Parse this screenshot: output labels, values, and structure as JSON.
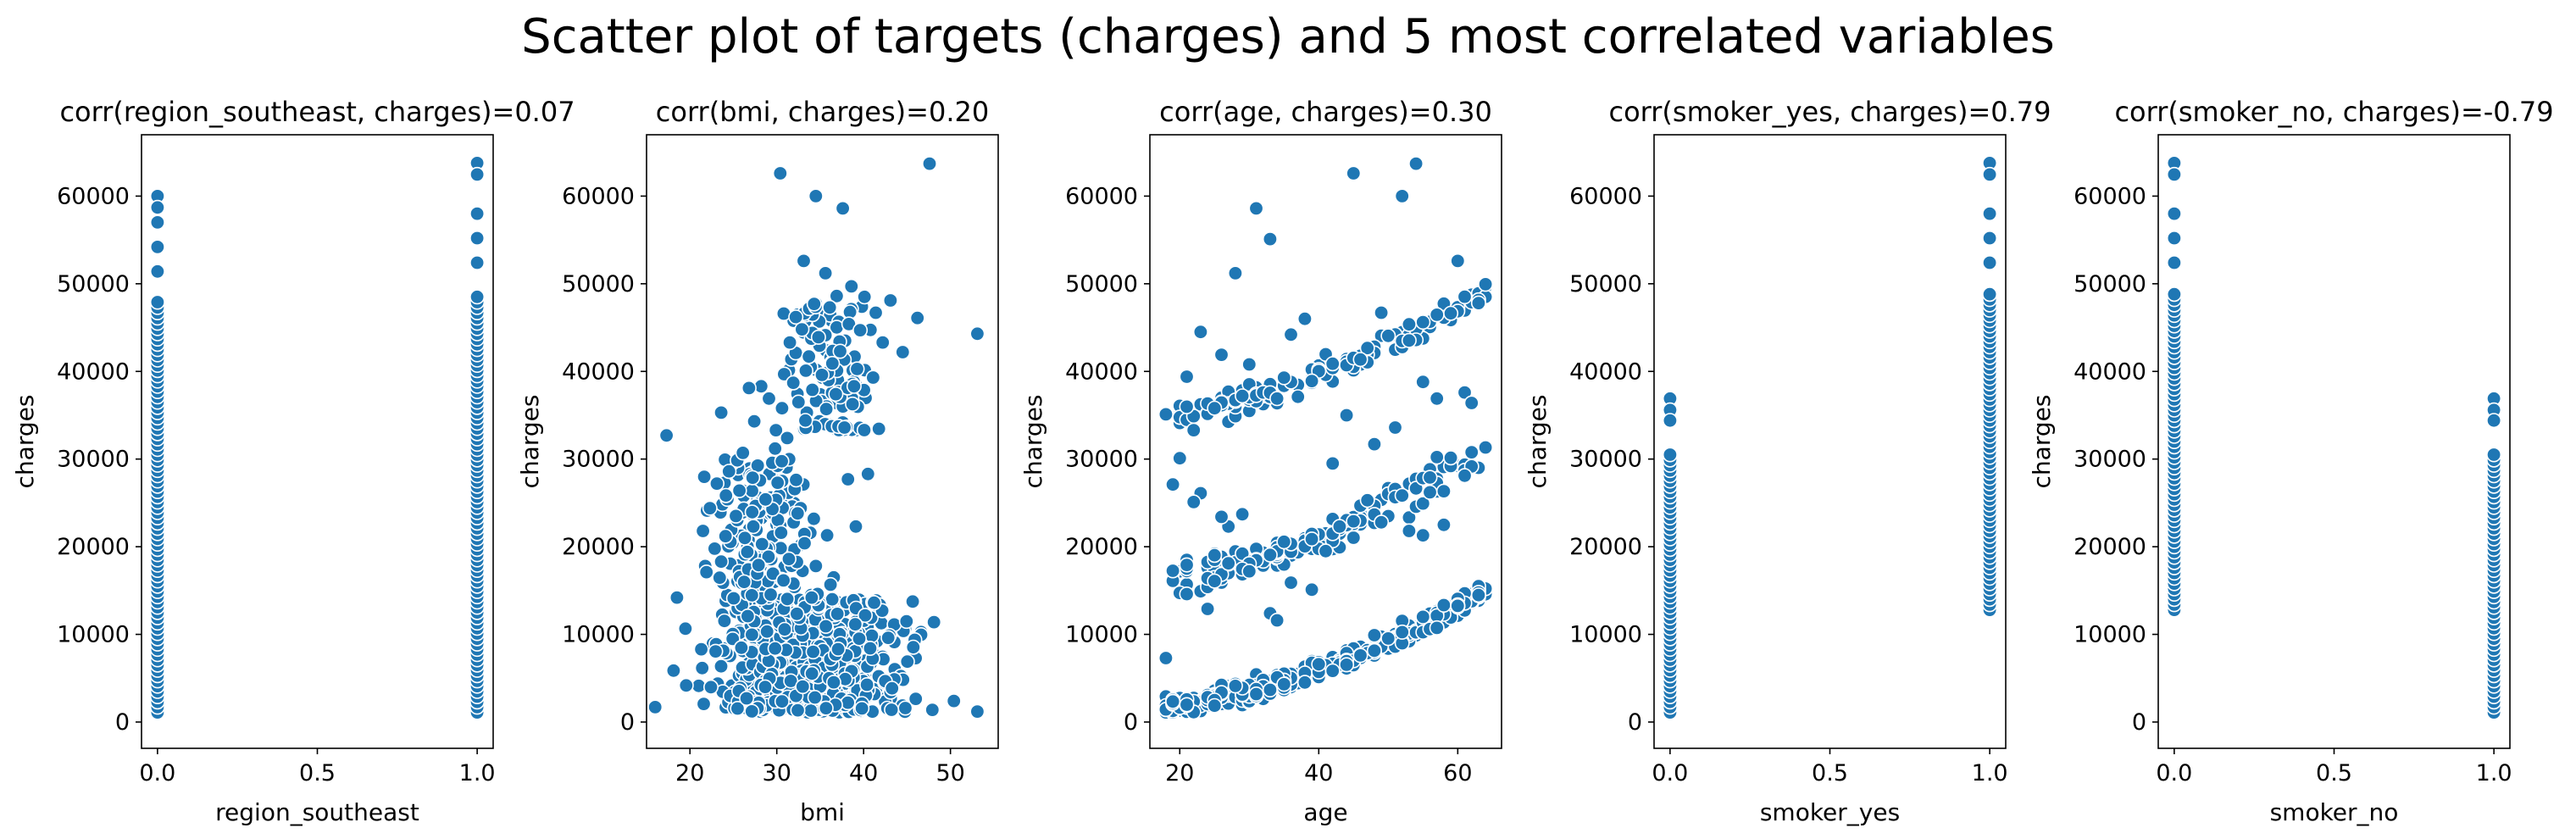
{
  "suptitle": "Scatter plot of targets (charges) and 5 most correlated variables",
  "style": {
    "point_color": "#1f77b4",
    "point_edge": "#ffffff",
    "axis_color": "#000000"
  },
  "chart_data": [
    {
      "type": "scatter",
      "title": "corr(region_southeast, charges)=0.07",
      "xlabel": "region_southeast",
      "ylabel": "charges",
      "xlim": [
        -0.05,
        1.05
      ],
      "ylim": [
        -3000,
        67000
      ],
      "xticks": [
        "0.0",
        "0.5",
        "1.0"
      ],
      "yticks": [
        "0",
        "10000",
        "20000",
        "30000",
        "40000",
        "50000",
        "60000"
      ],
      "clusters": [
        {
          "x": 0,
          "y_min": 1100,
          "y_max": 60000,
          "dense_max": 48000,
          "n": 55
        },
        {
          "x": 1,
          "y_min": 1100,
          "y_max": 63770,
          "dense_max": 49000,
          "n": 50
        }
      ]
    },
    {
      "type": "scatter",
      "title": "corr(bmi, charges)=0.20",
      "xlabel": "bmi",
      "ylabel": "charges",
      "xlim": [
        15,
        55.5
      ],
      "ylim": [
        -3000,
        67000
      ],
      "xticks": [
        "20",
        "30",
        "40",
        "50"
      ],
      "yticks": [
        "0",
        "10000",
        "20000",
        "30000",
        "40000",
        "50000",
        "60000"
      ],
      "points": [
        [
          16,
          1700
        ],
        [
          17.3,
          32700
        ],
        [
          18.5,
          14200
        ],
        [
          21.5,
          21800
        ],
        [
          30.4,
          62600
        ],
        [
          34.5,
          60000
        ],
        [
          37.6,
          58600
        ],
        [
          47.6,
          63700
        ],
        [
          53.1,
          44300
        ],
        [
          53.1,
          1200
        ],
        [
          50.4,
          2400
        ],
        [
          48.1,
          11400
        ],
        [
          46.2,
          46100
        ],
        [
          44.5,
          42200
        ],
        [
          43.1,
          48100
        ],
        [
          41.4,
          46700
        ],
        [
          40.1,
          48500
        ],
        [
          42.2,
          43300
        ],
        [
          36.9,
          48600
        ],
        [
          38.6,
          49700
        ],
        [
          35.6,
          51200
        ],
        [
          33.1,
          52600
        ],
        [
          30.8,
          46600
        ],
        [
          32.2,
          46200
        ],
        [
          34.3,
          47700
        ],
        [
          36.1,
          47300
        ],
        [
          38.3,
          45400
        ],
        [
          39.6,
          44700
        ],
        [
          32.9,
          44800
        ],
        [
          31.5,
          43300
        ],
        [
          34.8,
          43900
        ],
        [
          37.3,
          42300
        ],
        [
          33.7,
          41700
        ],
        [
          36.4,
          40900
        ],
        [
          35.2,
          39600
        ],
        [
          31.9,
          38700
        ],
        [
          34.1,
          37900
        ],
        [
          36.8,
          37400
        ],
        [
          38.9,
          38300
        ],
        [
          32.5,
          36500
        ],
        [
          35.7,
          35700
        ],
        [
          33.3,
          34400
        ],
        [
          30.6,
          35800
        ],
        [
          29.1,
          36900
        ],
        [
          28.2,
          38300
        ],
        [
          27.4,
          34300
        ],
        [
          29.9,
          33300
        ],
        [
          31.2,
          32400
        ],
        [
          37.8,
          33600
        ],
        [
          38.2,
          27700
        ],
        [
          40.5,
          28300
        ],
        [
          41.1,
          39300
        ],
        [
          39.1,
          22300
        ],
        [
          26.1,
          30700
        ],
        [
          24.5,
          28600
        ],
        [
          23.1,
          27200
        ],
        [
          22.3,
          24400
        ],
        [
          25.3,
          23500
        ],
        [
          27.3,
          22300
        ],
        [
          24.1,
          21200
        ],
        [
          26.6,
          19400
        ],
        [
          23.6,
          18300
        ],
        [
          21.9,
          17100
        ],
        [
          28.3,
          20300
        ],
        [
          29.5,
          24300
        ],
        [
          30.1,
          27300
        ],
        [
          28.7,
          25400
        ],
        [
          25.7,
          26400
        ],
        [
          27.9,
          17900
        ],
        [
          31.4,
          18600
        ],
        [
          30.5,
          21600
        ],
        [
          33.2,
          20400
        ],
        [
          35.8,
          21300
        ],
        [
          26.8,
          38100
        ],
        [
          23.6,
          35300
        ],
        [
          29.8,
          31200
        ],
        [
          32.4,
          23800
        ],
        [
          34.5,
          17800
        ]
      ],
      "dense_clusters": [
        {
          "x_range": [
            17,
            50
          ],
          "y_range": [
            1100,
            14000
          ],
          "n": 700
        },
        {
          "x_range": [
            20,
            37
          ],
          "y_range": [
            14000,
            30000
          ],
          "n": 150
        },
        {
          "x_range": [
            29,
            44
          ],
          "y_range": [
            33000,
            48000
          ],
          "n": 90
        }
      ]
    },
    {
      "type": "scatter",
      "title": "corr(age, charges)=0.30",
      "xlabel": "age",
      "ylabel": "charges",
      "xlim": [
        15.7,
        66.3
      ],
      "ylim": [
        -3000,
        67000
      ],
      "xticks": [
        "20",
        "40",
        "60"
      ],
      "yticks": [
        "0",
        "10000",
        "20000",
        "30000",
        "40000",
        "50000",
        "60000"
      ],
      "points": [
        [
          18,
          7300
        ],
        [
          31,
          58600
        ],
        [
          33,
          55100
        ],
        [
          28,
          51200
        ],
        [
          45,
          62600
        ],
        [
          52,
          60000
        ],
        [
          54,
          63700
        ],
        [
          60,
          52600
        ],
        [
          36,
          44200
        ],
        [
          38,
          46000
        ],
        [
          23,
          44500
        ],
        [
          26,
          41900
        ],
        [
          21,
          39400
        ],
        [
          18,
          35100
        ],
        [
          25,
          35800
        ],
        [
          29,
          37200
        ],
        [
          34,
          36900
        ],
        [
          30,
          40800
        ],
        [
          42,
          29500
        ],
        [
          48,
          31700
        ],
        [
          51,
          33600
        ],
        [
          57,
          36900
        ],
        [
          61,
          37600
        ],
        [
          62,
          36400
        ],
        [
          43,
          22300
        ],
        [
          41,
          19500
        ],
        [
          36,
          15900
        ],
        [
          39,
          15100
        ],
        [
          33,
          12400
        ],
        [
          34,
          11600
        ],
        [
          24,
          12900
        ],
        [
          21,
          14600
        ],
        [
          29,
          23700
        ],
        [
          27,
          22300
        ],
        [
          26,
          23400
        ],
        [
          23,
          26100
        ],
        [
          22,
          25100
        ],
        [
          19,
          27100
        ],
        [
          20,
          30100
        ],
        [
          22,
          33300
        ],
        [
          53,
          21800
        ],
        [
          47,
          25300
        ],
        [
          55,
          21300
        ],
        [
          58,
          22500
        ],
        [
          44,
          35000
        ],
        [
          55,
          38800
        ],
        [
          49,
          46700
        ],
        [
          63,
          47800
        ]
      ],
      "bands": [
        {
          "x_range": [
            18,
            64
          ],
          "y_start": 1100,
          "y_end": 14500,
          "spread": 2200,
          "n": 420
        },
        {
          "x_range": [
            18,
            64
          ],
          "y_start": 15000,
          "y_end": 30000,
          "spread": 4200,
          "n": 150
        },
        {
          "x_range": [
            18,
            64
          ],
          "y_start": 34000,
          "y_end": 48500,
          "spread": 3000,
          "n": 130
        }
      ]
    },
    {
      "type": "scatter",
      "title": "corr(smoker_yes, charges)=0.79",
      "xlabel": "smoker_yes",
      "ylabel": "charges",
      "xlim": [
        -0.05,
        1.05
      ],
      "ylim": [
        -3000,
        67000
      ],
      "xticks": [
        "0.0",
        "0.5",
        "1.0"
      ],
      "yticks": [
        "0",
        "10000",
        "20000",
        "30000",
        "40000",
        "50000",
        "60000"
      ],
      "clusters": [
        {
          "x": 0,
          "y_min": 1100,
          "y_max": 36900,
          "dense_max": 31000,
          "n": 55
        },
        {
          "x": 1,
          "y_min": 12800,
          "y_max": 63770,
          "dense_max": 49000,
          "n": 50
        }
      ]
    },
    {
      "type": "scatter",
      "title": "corr(smoker_no, charges)=-0.79",
      "xlabel": "smoker_no",
      "ylabel": "charges",
      "xlim": [
        -0.05,
        1.05
      ],
      "ylim": [
        -3000,
        67000
      ],
      "xticks": [
        "0.0",
        "0.5",
        "1.0"
      ],
      "yticks": [
        "0",
        "10000",
        "20000",
        "30000",
        "40000",
        "50000",
        "60000"
      ],
      "clusters": [
        {
          "x": 0,
          "y_min": 12800,
          "y_max": 63770,
          "dense_max": 49000,
          "n": 50
        },
        {
          "x": 1,
          "y_min": 1100,
          "y_max": 36900,
          "dense_max": 31000,
          "n": 55
        }
      ]
    }
  ]
}
